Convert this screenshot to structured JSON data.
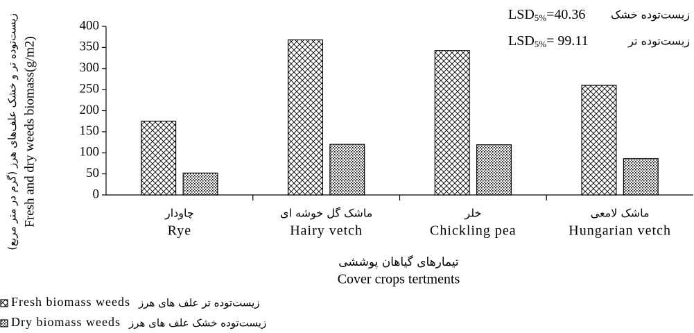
{
  "chart_data": {
    "type": "bar",
    "categories": [
      "Rye",
      "Hairy vetch",
      "Chickling pea",
      "Hungarian vetch"
    ],
    "categories_fa": [
      "چاودار",
      "ماشک گل خوشه ای",
      "خلر",
      "ماشک لامعی"
    ],
    "series": [
      {
        "name": "Fresh biomass weeds",
        "name_fa": "زیست‌توده تر علف های هرز",
        "pattern": "crosshatch",
        "color": "#000000",
        "values": [
          175,
          368,
          343,
          260
        ]
      },
      {
        "name": "Dry biomass weeds",
        "name_fa": "زیست‌توده خشک علف های هرز",
        "pattern": "dots",
        "color": "#000000",
        "values": [
          52,
          120,
          119,
          86
        ]
      }
    ],
    "ylim": [
      0,
      400
    ],
    "yticks": [
      0,
      50,
      100,
      150,
      200,
      250,
      300,
      350,
      400
    ],
    "y_label": "Fresh and dry weeds biomass(g/m2)",
    "y_label_fa": "(زیست‌توده تر و خشک علف‌های هرز (گرم در متر مربع",
    "x_label": "Cover crops tertments",
    "x_label_fa": "تیمارهای گیاهان پوششی",
    "annotations": [
      {
        "fa": "زیست‌توده خشک",
        "lsd": "LSD",
        "sub": "5%",
        "text": "=40.36"
      },
      {
        "fa": "زیست‌توده تر",
        "lsd": "LSD",
        "sub": "5%",
        "text": "= 99.11"
      }
    ]
  }
}
